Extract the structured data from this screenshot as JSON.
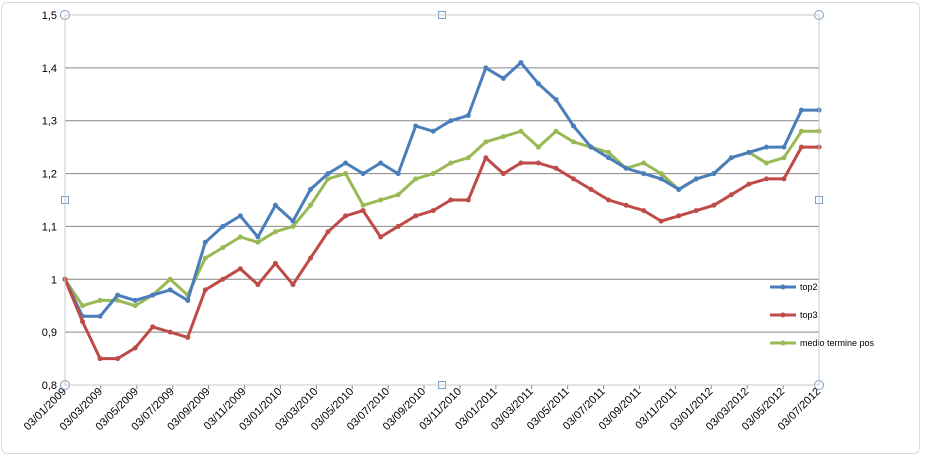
{
  "chart_data": {
    "type": "line",
    "title": "",
    "xlabel": "",
    "ylabel": "",
    "ylim": [
      0.8,
      1.5
    ],
    "yticks": [
      "0,8",
      "0,9",
      "1",
      "1,1",
      "1,2",
      "1,3",
      "1,4",
      "1,5"
    ],
    "x_tick_labels": [
      "03/01/2009",
      "03/03/2009",
      "03/05/2009",
      "03/07/2009",
      "03/09/2009",
      "03/11/2009",
      "03/01/2010",
      "03/03/2010",
      "03/05/2010",
      "03/07/2010",
      "03/09/2010",
      "03/11/2010",
      "03/01/2011",
      "03/03/2011",
      "03/05/2011",
      "03/07/2011",
      "03/09/2011",
      "03/11/2011",
      "03/01/2012",
      "03/03/2012",
      "03/05/2012",
      "03/07/2012"
    ],
    "grid": "horizontal",
    "legend_position": "right",
    "colors": {
      "top2": "#4a7ebb",
      "top3": "#be4b48",
      "medio": "#98b954",
      "grid": "#868686"
    },
    "x": [
      "03/01/2009",
      "03/02/2009",
      "03/03/2009",
      "03/04/2009",
      "03/05/2009",
      "03/06/2009",
      "03/07/2009",
      "03/08/2009",
      "03/09/2009",
      "03/10/2009",
      "03/11/2009",
      "03/12/2009",
      "03/01/2010",
      "03/02/2010",
      "03/03/2010",
      "03/04/2010",
      "03/05/2010",
      "03/06/2010",
      "03/07/2010",
      "03/08/2010",
      "03/09/2010",
      "03/10/2010",
      "03/11/2010",
      "03/12/2010",
      "03/01/2011",
      "03/02/2011",
      "03/03/2011",
      "03/04/2011",
      "03/05/2011",
      "03/06/2011",
      "03/07/2011",
      "03/08/2011",
      "03/09/2011",
      "03/10/2011",
      "03/11/2011",
      "03/12/2011",
      "03/01/2012",
      "03/02/2012",
      "03/03/2012",
      "03/04/2012",
      "03/05/2012",
      "03/06/2012",
      "03/07/2012",
      "03/08/2012"
    ],
    "series": [
      {
        "name": "top2",
        "values": [
          1.0,
          0.93,
          0.93,
          0.97,
          0.96,
          0.97,
          0.98,
          0.96,
          1.07,
          1.1,
          1.12,
          1.08,
          1.14,
          1.11,
          1.17,
          1.2,
          1.22,
          1.2,
          1.22,
          1.2,
          1.29,
          1.28,
          1.3,
          1.31,
          1.4,
          1.38,
          1.41,
          1.37,
          1.34,
          1.29,
          1.25,
          1.23,
          1.21,
          1.2,
          1.19,
          1.17,
          1.19,
          1.2,
          1.23,
          1.24,
          1.25,
          1.25,
          1.32,
          1.32
        ]
      },
      {
        "name": "top3",
        "values": [
          1.0,
          0.92,
          0.85,
          0.85,
          0.87,
          0.91,
          0.9,
          0.89,
          0.98,
          1.0,
          1.02,
          0.99,
          1.03,
          0.99,
          1.04,
          1.09,
          1.12,
          1.13,
          1.08,
          1.1,
          1.12,
          1.13,
          1.15,
          1.15,
          1.23,
          1.2,
          1.22,
          1.22,
          1.21,
          1.19,
          1.17,
          1.15,
          1.14,
          1.13,
          1.11,
          1.12,
          1.13,
          1.14,
          1.16,
          1.18,
          1.19,
          1.19,
          1.25,
          1.25
        ]
      },
      {
        "name": "medio termine pos",
        "values": [
          1.0,
          0.95,
          0.96,
          0.96,
          0.95,
          0.97,
          1.0,
          0.97,
          1.04,
          1.06,
          1.08,
          1.07,
          1.09,
          1.1,
          1.14,
          1.19,
          1.2,
          1.14,
          1.15,
          1.16,
          1.19,
          1.2,
          1.22,
          1.23,
          1.26,
          1.27,
          1.28,
          1.25,
          1.28,
          1.26,
          1.25,
          1.24,
          1.21,
          1.22,
          1.2,
          1.17,
          1.19,
          1.2,
          1.23,
          1.24,
          1.22,
          1.23,
          1.28,
          1.28
        ]
      }
    ]
  }
}
